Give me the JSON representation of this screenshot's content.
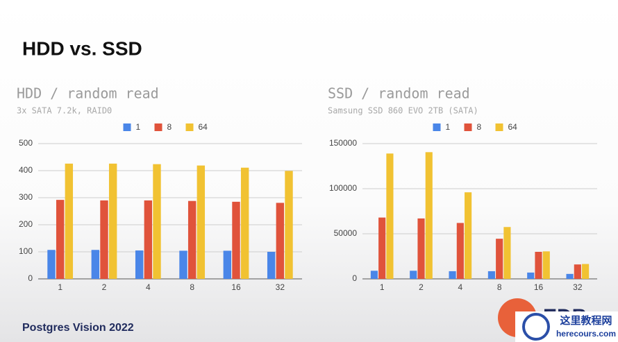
{
  "slide": {
    "title": "HDD vs. SSD",
    "footer": "Postgres Vision 2022",
    "logo": "EDB",
    "watermark": "这里教程网",
    "watermark_url": "herecours.com"
  },
  "chart_data": [
    {
      "type": "bar",
      "title": "HDD / random read",
      "subtitle": "3x SATA 7.2k, RAID0",
      "categories": [
        "1",
        "2",
        "4",
        "8",
        "16",
        "32"
      ],
      "series": [
        {
          "name": "1",
          "color": "#4a86e8",
          "values": [
            107,
            107,
            105,
            104,
            104,
            100
          ]
        },
        {
          "name": "8",
          "color": "#e0533b",
          "values": [
            292,
            290,
            290,
            288,
            285,
            281
          ]
        },
        {
          "name": "64",
          "color": "#f1c232",
          "values": [
            426,
            426,
            424,
            419,
            411,
            399
          ]
        }
      ],
      "ylim": [
        0,
        500
      ],
      "yticks": [
        0,
        100,
        200,
        300,
        400,
        500
      ],
      "grid": true,
      "legend": "top"
    },
    {
      "type": "bar",
      "title": "SSD / random read",
      "subtitle": "Samsung SSD 860 EVO 2TB (SATA)",
      "categories": [
        "1",
        "2",
        "4",
        "8",
        "16",
        "32"
      ],
      "series": [
        {
          "name": "1",
          "color": "#4a86e8",
          "values": [
            9000,
            9000,
            8500,
            8500,
            7000,
            5500
          ]
        },
        {
          "name": "8",
          "color": "#e0533b",
          "values": [
            68000,
            67000,
            62000,
            44500,
            30000,
            16000
          ]
        },
        {
          "name": "64",
          "color": "#f1c232",
          "values": [
            139000,
            140500,
            96000,
            57500,
            30500,
            16500
          ]
        }
      ],
      "ylim": [
        0,
        150000
      ],
      "yticks": [
        0,
        50000,
        100000,
        150000
      ],
      "grid": true,
      "legend": "top"
    }
  ]
}
